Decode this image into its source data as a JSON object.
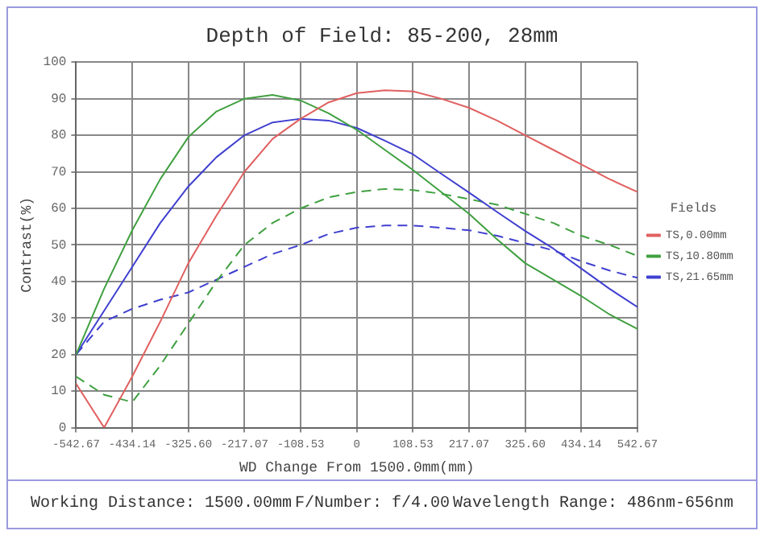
{
  "chart_data": {
    "type": "line",
    "title": "Depth of Field: 85-200, 28mm",
    "xlabel": "WD Change From 1500.0mm(mm)",
    "ylabel": "Contrast(%)",
    "legend_title": "Fields",
    "legend": "right",
    "grid": true,
    "marker": "none",
    "xlim": [
      -542.67,
      542.67
    ],
    "xticks": [
      -542.67,
      -434.14,
      {
        "value": -325.6,
        "label": "-325.60"
      },
      -217.07,
      -108.53,
      0,
      108.53,
      217.07,
      {
        "value": 325.6,
        "label": "325.60"
      },
      434.14,
      542.67
    ],
    "ylim": [
      0,
      100
    ],
    "yticks": [
      0,
      10,
      20,
      30,
      40,
      50,
      60,
      70,
      80,
      90,
      100
    ],
    "x": [
      -542.67,
      -488.4,
      -434.14,
      -379.87,
      -325.6,
      -271.3,
      -217.07,
      -162.8,
      -108.53,
      -54.27,
      0,
      54.27,
      108.53,
      162.8,
      217.07,
      271.3,
      325.6,
      379.87,
      434.14,
      488.4,
      542.67
    ],
    "series": [
      {
        "name": "TS,0.00mm",
        "color": "#e06060",
        "line_style": "solid",
        "values": [
          12,
          0,
          14,
          29,
          45,
          58,
          70,
          79,
          84.5,
          89,
          91.5,
          92.3,
          92,
          90,
          87.5,
          84,
          80,
          76,
          72,
          68,
          64.5
        ]
      },
      {
        "name": "TS,10.80mm",
        "color": "#40a040",
        "line_style": "solid",
        "values": [
          20,
          38,
          54,
          68,
          79.5,
          86.5,
          90,
          91,
          89.5,
          86,
          81.5,
          76,
          70.5,
          64.5,
          58.5,
          51.5,
          45,
          40.5,
          36,
          31,
          27
        ]
      },
      {
        "name": "TS,21.65mm",
        "color": "#4040d0",
        "line_style": "solid",
        "values": [
          20,
          32,
          44,
          56,
          66,
          74,
          80,
          83.5,
          84.5,
          84,
          82,
          78.5,
          74.8,
          69.5,
          64.3,
          59,
          53.8,
          49,
          43.5,
          38,
          33
        ]
      },
      {
        "color": "#40a040",
        "line_style": "dashed",
        "values": [
          14,
          9,
          7,
          17,
          28.5,
          40,
          50,
          56,
          60,
          63,
          64.5,
          65.3,
          65,
          64,
          62.5,
          61,
          58.5,
          56,
          52.5,
          50,
          47
        ]
      },
      {
        "color": "#4040d0",
        "line_style": "dashed",
        "values": [
          20,
          29,
          32.5,
          35,
          37,
          40.5,
          44,
          47.5,
          50,
          53,
          54.7,
          55.3,
          55.3,
          54.7,
          54,
          52.5,
          50.5,
          48.5,
          45.5,
          43,
          41
        ]
      }
    ],
    "annotations": [
      "Working Distance: 1500.00mm",
      "F/Number: f/4.00",
      "Wavelength Range: 486nm-656nm"
    ]
  }
}
